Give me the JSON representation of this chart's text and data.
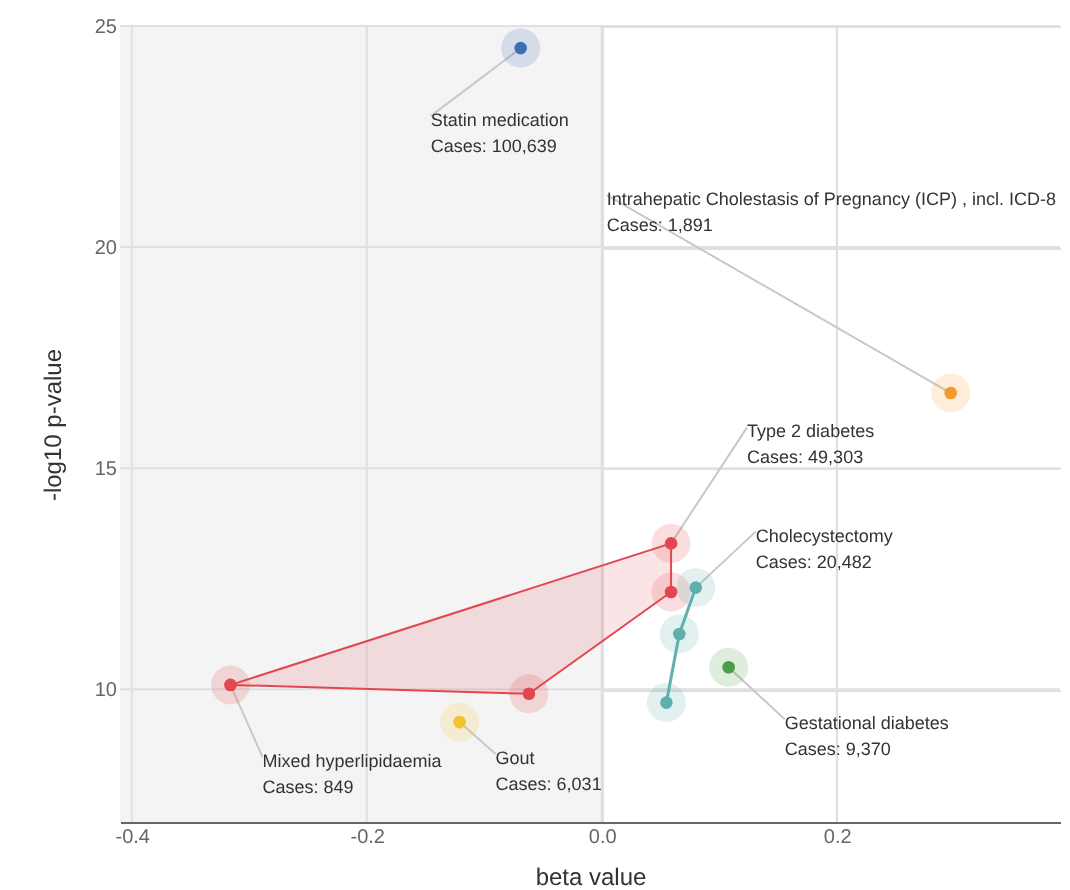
{
  "chart_data": {
    "type": "scatter",
    "xlabel": "beta value",
    "ylabel": "-log10 p-value",
    "xlim": [
      -0.41,
      0.39
    ],
    "ylim": [
      7,
      25
    ],
    "xticks": [
      -0.4,
      -0.2,
      {
        "value": 0,
        "label": "0.0"
      },
      0.2
    ],
    "yticks": [
      10,
      15,
      20,
      25
    ],
    "grid": true,
    "marker": "circle",
    "bands": [
      {
        "axis": "x",
        "from": -0.41,
        "to": 0,
        "color": "#f4f4f4"
      }
    ],
    "series": [
      {
        "color": "#3d6eb4",
        "x": [
          -0.069
        ],
        "values": [
          24.5
        ]
      },
      {
        "color": "#f39a2e",
        "x": [
          0.297
        ],
        "values": [
          16.7
        ]
      },
      {
        "type": "area",
        "color": "#e2474f",
        "x": [
          -0.316,
          -0.062,
          0.059,
          0.059
        ],
        "values": [
          10.1,
          9.9,
          12.2,
          13.3
        ]
      },
      {
        "type": "line",
        "color": "#5fb0ad",
        "x": [
          0.08,
          0.066,
          0.055
        ],
        "values": [
          12.3,
          11.25,
          9.7
        ]
      },
      {
        "color": "#4a9e4a",
        "x": [
          0.108
        ],
        "values": [
          10.5
        ]
      },
      {
        "color": "#f2c230",
        "x": [
          -0.121
        ],
        "values": [
          9.26
        ]
      }
    ],
    "annotations": [
      {
        "text": "Statin medication\nCases: 100,639",
        "x": -0.069,
        "y": 24.5
      },
      {
        "text": "Intrahepatic Cholestasis of Pregnancy (ICP) , incl. ICD-8\nCases: 1,891",
        "x": 0.297,
        "y": 16.7
      },
      {
        "text": "Type 2 diabetes\nCases: 49,303",
        "x": 0.059,
        "y": 13.3
      },
      {
        "text": "Cholecystectomy\nCases: 20,482",
        "x": 0.08,
        "y": 12.3
      },
      {
        "text": "Gestational diabetes\nCases: 9,370",
        "x": 0.108,
        "y": 10.5
      },
      {
        "text": "Gout\nCases: 6,031",
        "x": -0.121,
        "y": 9.26
      },
      {
        "text": "Mixed hyperlipidaemia\nCases: 849",
        "x": -0.316,
        "y": 10.1
      }
    ]
  }
}
